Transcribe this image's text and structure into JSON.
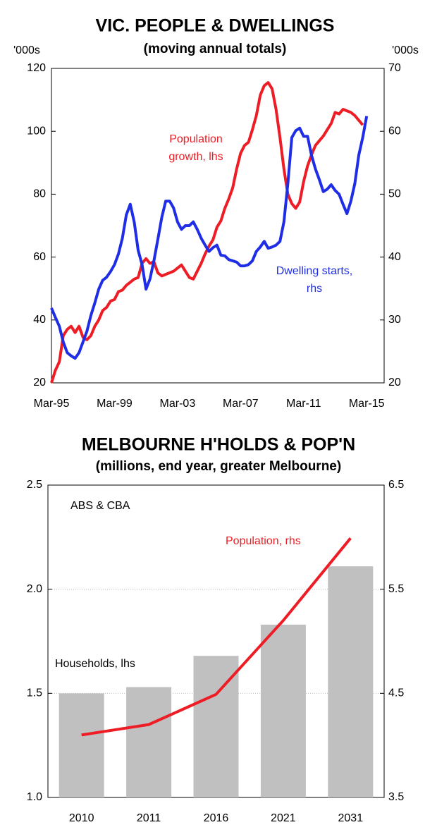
{
  "chart_data": [
    {
      "type": "line",
      "title": "VIC. PEOPLE & DWELLINGS",
      "subtitle": "(moving annual totals)",
      "y_unit": "'000s",
      "y2_unit": "'000s",
      "categories": [
        "Mar-95",
        null,
        null,
        null,
        null,
        null,
        null,
        null,
        null,
        null,
        null,
        null,
        null,
        null,
        null,
        null,
        "Mar-99",
        null,
        null,
        null,
        null,
        null,
        null,
        null,
        null,
        null,
        null,
        null,
        null,
        null,
        null,
        null,
        "Mar-03",
        null,
        null,
        null,
        null,
        null,
        null,
        null,
        null,
        null,
        null,
        null,
        null,
        null,
        null,
        null,
        "Mar-07",
        null,
        null,
        null,
        null,
        null,
        null,
        null,
        null,
        null,
        null,
        null,
        null,
        null,
        null,
        null,
        "Mar-11",
        null,
        null,
        null,
        null,
        null,
        null,
        null,
        null,
        null,
        null,
        null,
        null,
        null,
        null,
        null,
        "Mar-15"
      ],
      "ylim": [
        20,
        120
      ],
      "yticks": [
        20,
        40,
        60,
        80,
        100,
        120
      ],
      "y2lim": [
        20,
        70
      ],
      "y2ticks": [
        20,
        30,
        40,
        50,
        60,
        70
      ],
      "grid": false,
      "series": [
        {
          "name": "Population growth, lhs",
          "label_lines": [
            "Population",
            "growth, lhs"
          ],
          "color": "#ee1c25",
          "axis": "y",
          "values": [
            20,
            24,
            26.7,
            35,
            37,
            38,
            36,
            38,
            34.5,
            33.7,
            35,
            38,
            40,
            43,
            44,
            46,
            46.5,
            49,
            49.5,
            51,
            52,
            53,
            53.5,
            58,
            59.5,
            58,
            58.5,
            55,
            54,
            54.5,
            55,
            55.5,
            56.5,
            57.5,
            55.5,
            53.5,
            53,
            55.5,
            58,
            61,
            63.5,
            65.5,
            69.5,
            71.5,
            75.5,
            78.5,
            82,
            88,
            93,
            95.5,
            96.5,
            100.5,
            105,
            111.5,
            114.5,
            115.5,
            113.5,
            107,
            98,
            88,
            80,
            77,
            75.5,
            77.5,
            84,
            89,
            92.5,
            95.5,
            97,
            98.5,
            100.5,
            102.5,
            106,
            105.5,
            107,
            106.5,
            106,
            105,
            103.5,
            102,
            null
          ]
        },
        {
          "name": "Dwelling starts, rhs",
          "label_lines": [
            "Dwelling starts,",
            "rhs"
          ],
          "color": "#1f2ee6",
          "axis": "y2",
          "values": [
            31.9,
            30.4,
            29,
            26.5,
            24.8,
            24.3,
            23.9,
            24.8,
            26.5,
            28.2,
            30.7,
            32.7,
            34.9,
            36.3,
            36.8,
            37.7,
            38.8,
            40.5,
            43,
            46.7,
            48.4,
            45.6,
            41.1,
            38.8,
            34.9,
            36.5,
            39.4,
            42.8,
            46.3,
            48.9,
            48.9,
            47.8,
            45.6,
            44.4,
            45,
            45,
            45.6,
            44.4,
            43,
            41.9,
            40.9,
            41.5,
            41.9,
            40.3,
            40.2,
            39.6,
            39.4,
            39.2,
            38.6,
            38.6,
            38.8,
            39.4,
            40.9,
            41.6,
            42.5,
            41.4,
            41.6,
            41.9,
            42.5,
            45.6,
            51.7,
            59,
            60.1,
            60.5,
            59.2,
            59.2,
            56.2,
            54,
            52.3,
            50.4,
            50.8,
            51.5,
            50.6,
            50,
            48.4,
            46.9,
            48.9,
            51.7,
            56.2,
            59,
            62.4
          ]
        }
      ]
    },
    {
      "type": "bar_line",
      "title": "MELBOURNE H'HOLDS & POP'N",
      "subtitle": "(millions, end year, greater Melbourne)",
      "source": "ABS & CBA",
      "categories": [
        "2010",
        "2011",
        "2016",
        "2021",
        "2031"
      ],
      "ylim": [
        1.0,
        2.5
      ],
      "yticks": [
        {
          "value": 1.0,
          "label": "1.0"
        },
        1.5,
        {
          "value": 2.0,
          "label": "2.0"
        },
        2.5
      ],
      "y2lim": [
        3.5,
        6.5
      ],
      "y2ticks": [
        3.5,
        4.5,
        5.5,
        6.5
      ],
      "grid": true,
      "series": [
        {
          "name": "Households, lhs",
          "color": "#c0c0c0",
          "axis": "y",
          "kind": "bar",
          "values": [
            1.5,
            1.53,
            1.68,
            1.83,
            2.11
          ]
        },
        {
          "name": "Population, rhs",
          "color": "#ee1c25",
          "axis": "y2",
          "kind": "line",
          "values": [
            4.1,
            4.2,
            4.49,
            5.2,
            5.99
          ]
        }
      ]
    }
  ]
}
